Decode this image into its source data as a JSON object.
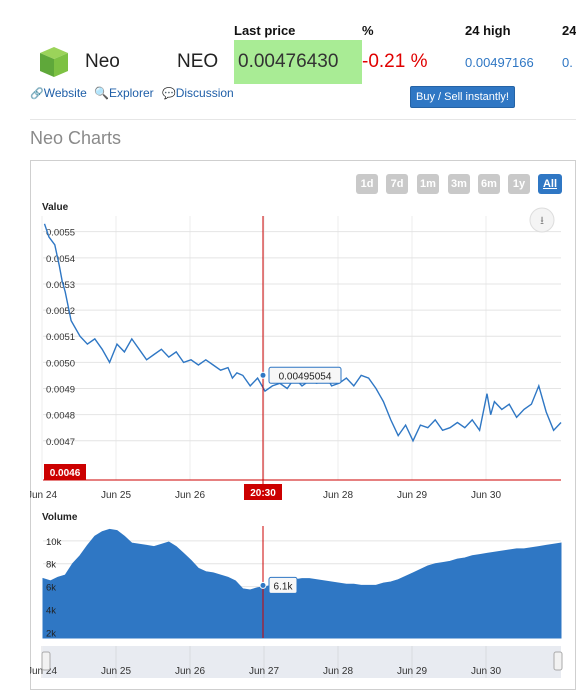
{
  "headers": {
    "last_price": "Last price",
    "pct": "%",
    "high24": "24 high",
    "low24": "24"
  },
  "coin": {
    "name": "Neo",
    "symbol": "NEO",
    "last_price": "0.00476430",
    "change": "-0.21 %",
    "high24": "0.00497166",
    "low24": "0."
  },
  "links": {
    "website": "Website",
    "explorer": "Explorer",
    "discussion": "Discussion"
  },
  "buy_button": "Buy / Sell instantly!",
  "section_title": "Neo Charts",
  "ranges": [
    {
      "label": "1d",
      "selected": false
    },
    {
      "label": "7d",
      "selected": false
    },
    {
      "label": "1m",
      "selected": false
    },
    {
      "label": "3m",
      "selected": false
    },
    {
      "label": "6m",
      "selected": false
    },
    {
      "label": "1y",
      "selected": false
    },
    {
      "label": "All",
      "selected": true
    }
  ],
  "colors": {
    "accent": "#2f77c4",
    "price_bg": "#a9ec95",
    "negative": "#e00000",
    "crosshair": "#cc0000"
  },
  "chart_data": [
    {
      "type": "line",
      "title": "",
      "ylabel": "Value",
      "ylim": [
        0.00455,
        0.00556
      ],
      "yticks": [
        "0.0047",
        "0.0048",
        "0.0049",
        "0.0050",
        "0.0051",
        "0.0052",
        "0.0053",
        "0.0054",
        "0.0055"
      ],
      "ytick_values": [
        0.0047,
        0.0048,
        0.0049,
        0.005,
        0.0051,
        0.0052,
        0.0053,
        0.0054,
        0.0055
      ],
      "xlim": [
        23.5,
        30.5
      ],
      "xticks": [
        "Jun 24",
        "Jun 25",
        "Jun 26",
        "Jun 27",
        "Jun 28",
        "Jun 29",
        "Jun 30"
      ],
      "xtick_values": [
        24,
        25,
        26,
        27,
        28,
        29,
        30
      ],
      "x": [
        23.52,
        23.58,
        23.66,
        23.72,
        23.76,
        23.8,
        23.88,
        24.0,
        24.1,
        24.2,
        24.3,
        24.4,
        24.5,
        24.6,
        24.7,
        24.8,
        24.9,
        25.0,
        25.1,
        25.2,
        25.3,
        25.4,
        25.5,
        25.6,
        25.7,
        25.8,
        25.9,
        26.0,
        26.06,
        26.12,
        26.2,
        26.3,
        26.4,
        26.5,
        26.6,
        26.7,
        26.8,
        26.9,
        27.0,
        27.1,
        27.2,
        27.3,
        27.4,
        27.5,
        27.6,
        27.7,
        27.8,
        27.9,
        28.0,
        28.1,
        28.2,
        28.3,
        28.4,
        28.5,
        28.6,
        28.7,
        28.8,
        28.9,
        29.0,
        29.1,
        29.2,
        29.3,
        29.4,
        29.5,
        29.55,
        29.6,
        29.7,
        29.8,
        29.9,
        30.0,
        30.1,
        30.2,
        30.3,
        30.4,
        30.5
      ],
      "y": [
        0.00553,
        0.00548,
        0.00545,
        0.00537,
        0.00531,
        0.00527,
        0.00516,
        0.0051,
        0.00507,
        0.00509,
        0.00505,
        0.005,
        0.00507,
        0.00504,
        0.00509,
        0.00505,
        0.00501,
        0.00503,
        0.00505,
        0.00502,
        0.00504,
        0.005,
        0.00501,
        0.00499,
        0.00501,
        0.00499,
        0.00497,
        0.00498,
        0.00494,
        0.00496,
        0.00495,
        0.00491,
        0.00494,
        0.00489,
        0.00491,
        0.00492,
        0.0049,
        0.00494,
        0.00491,
        0.00493,
        0.00492,
        0.00496,
        0.00491,
        0.00492,
        0.00494,
        0.00491,
        0.00495,
        0.00494,
        0.0049,
        0.00485,
        0.00478,
        0.00472,
        0.00476,
        0.0047,
        0.00476,
        0.00475,
        0.00478,
        0.00474,
        0.00475,
        0.00477,
        0.00475,
        0.00478,
        0.00474,
        0.00488,
        0.0048,
        0.00485,
        0.00482,
        0.00484,
        0.00479,
        0.00482,
        0.00484,
        0.00491,
        0.00481,
        0.00474,
        0.00477
      ],
      "crosshair": {
        "x_label": "20:30",
        "y_label": "0.0046",
        "tooltip": "0.00495054"
      }
    },
    {
      "type": "area",
      "title": "",
      "ylabel": "Volume",
      "ylim": [
        1500,
        11300
      ],
      "yticks": [
        "2k",
        "4k",
        "6k",
        "8k",
        "10k"
      ],
      "ytick_values": [
        2000,
        4000,
        6000,
        8000,
        10000
      ],
      "xlim": [
        23.5,
        30.5
      ],
      "xticks": [
        "Jun 24",
        "Jun 25",
        "Jun 26",
        "Jun 27",
        "Jun 28",
        "Jun 29",
        "Jun 30"
      ],
      "xtick_values": [
        24,
        25,
        26,
        27,
        28,
        29,
        30
      ],
      "x": [
        23.5,
        23.6,
        23.7,
        23.8,
        23.9,
        24.0,
        24.1,
        24.2,
        24.3,
        24.4,
        24.5,
        24.6,
        24.7,
        24.8,
        24.9,
        25.0,
        25.1,
        25.2,
        25.3,
        25.4,
        25.5,
        25.6,
        25.7,
        25.8,
        25.9,
        26.0,
        26.1,
        26.2,
        26.3,
        26.4,
        26.5,
        26.6,
        26.7,
        26.8,
        26.9,
        27.0,
        27.1,
        27.2,
        27.3,
        27.4,
        27.5,
        27.6,
        27.7,
        27.8,
        27.9,
        28.0,
        28.1,
        28.2,
        28.3,
        28.4,
        28.5,
        28.6,
        28.7,
        28.8,
        28.9,
        29.0,
        29.1,
        29.2,
        29.3,
        29.4,
        29.5,
        29.6,
        29.7,
        29.8,
        29.9,
        30.0,
        30.1,
        30.2,
        30.3,
        30.4,
        30.5
      ],
      "y": [
        6700,
        6500,
        6800,
        7000,
        8000,
        8700,
        9600,
        10400,
        10800,
        11000,
        10900,
        10400,
        9800,
        9700,
        9600,
        9500,
        9700,
        9900,
        9500,
        8900,
        8300,
        7600,
        7300,
        7200,
        7000,
        6800,
        6500,
        5800,
        5700,
        5900,
        6000,
        6100,
        6300,
        6500,
        6600,
        6700,
        6700,
        6600,
        6500,
        6400,
        6300,
        6200,
        6200,
        6100,
        6100,
        6100,
        6300,
        6400,
        6600,
        6900,
        7200,
        7500,
        7800,
        8000,
        8100,
        8200,
        8400,
        8500,
        8700,
        8800,
        8900,
        9000,
        9100,
        9200,
        9300,
        9300,
        9400,
        9500,
        9600,
        9700,
        9800
      ],
      "crosshair": {
        "tooltip": "6.1k"
      }
    }
  ]
}
